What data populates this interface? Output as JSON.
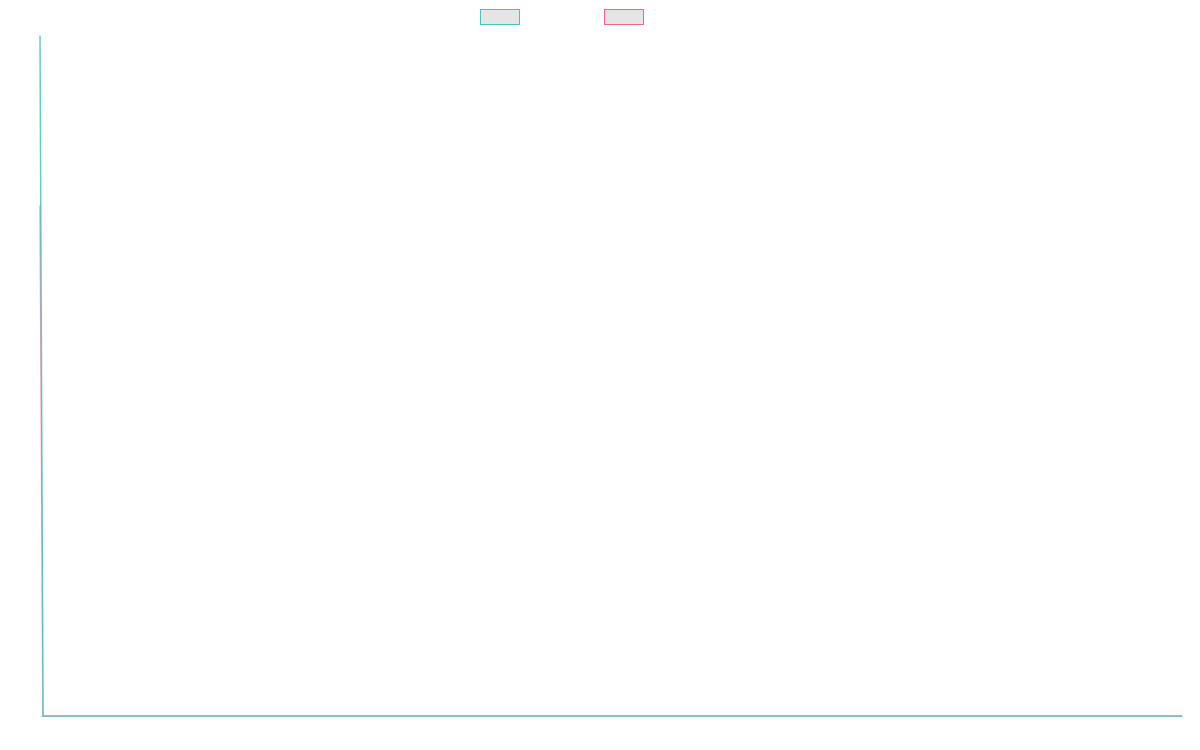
{
  "chart_data": {
    "type": "line",
    "title": "",
    "xlabel": "",
    "ylabel": "",
    "grid": false,
    "legend_position": "top",
    "x": [
      0,
      1,
      380
    ],
    "ylim": [
      0,
      100
    ],
    "series": [
      {
        "name": "",
        "color": "#4bc0c0",
        "values": [
          100,
          0,
          0
        ]
      },
      {
        "name": "",
        "color": "#ff6384",
        "values": [
          75,
          0,
          0
        ]
      }
    ]
  }
}
